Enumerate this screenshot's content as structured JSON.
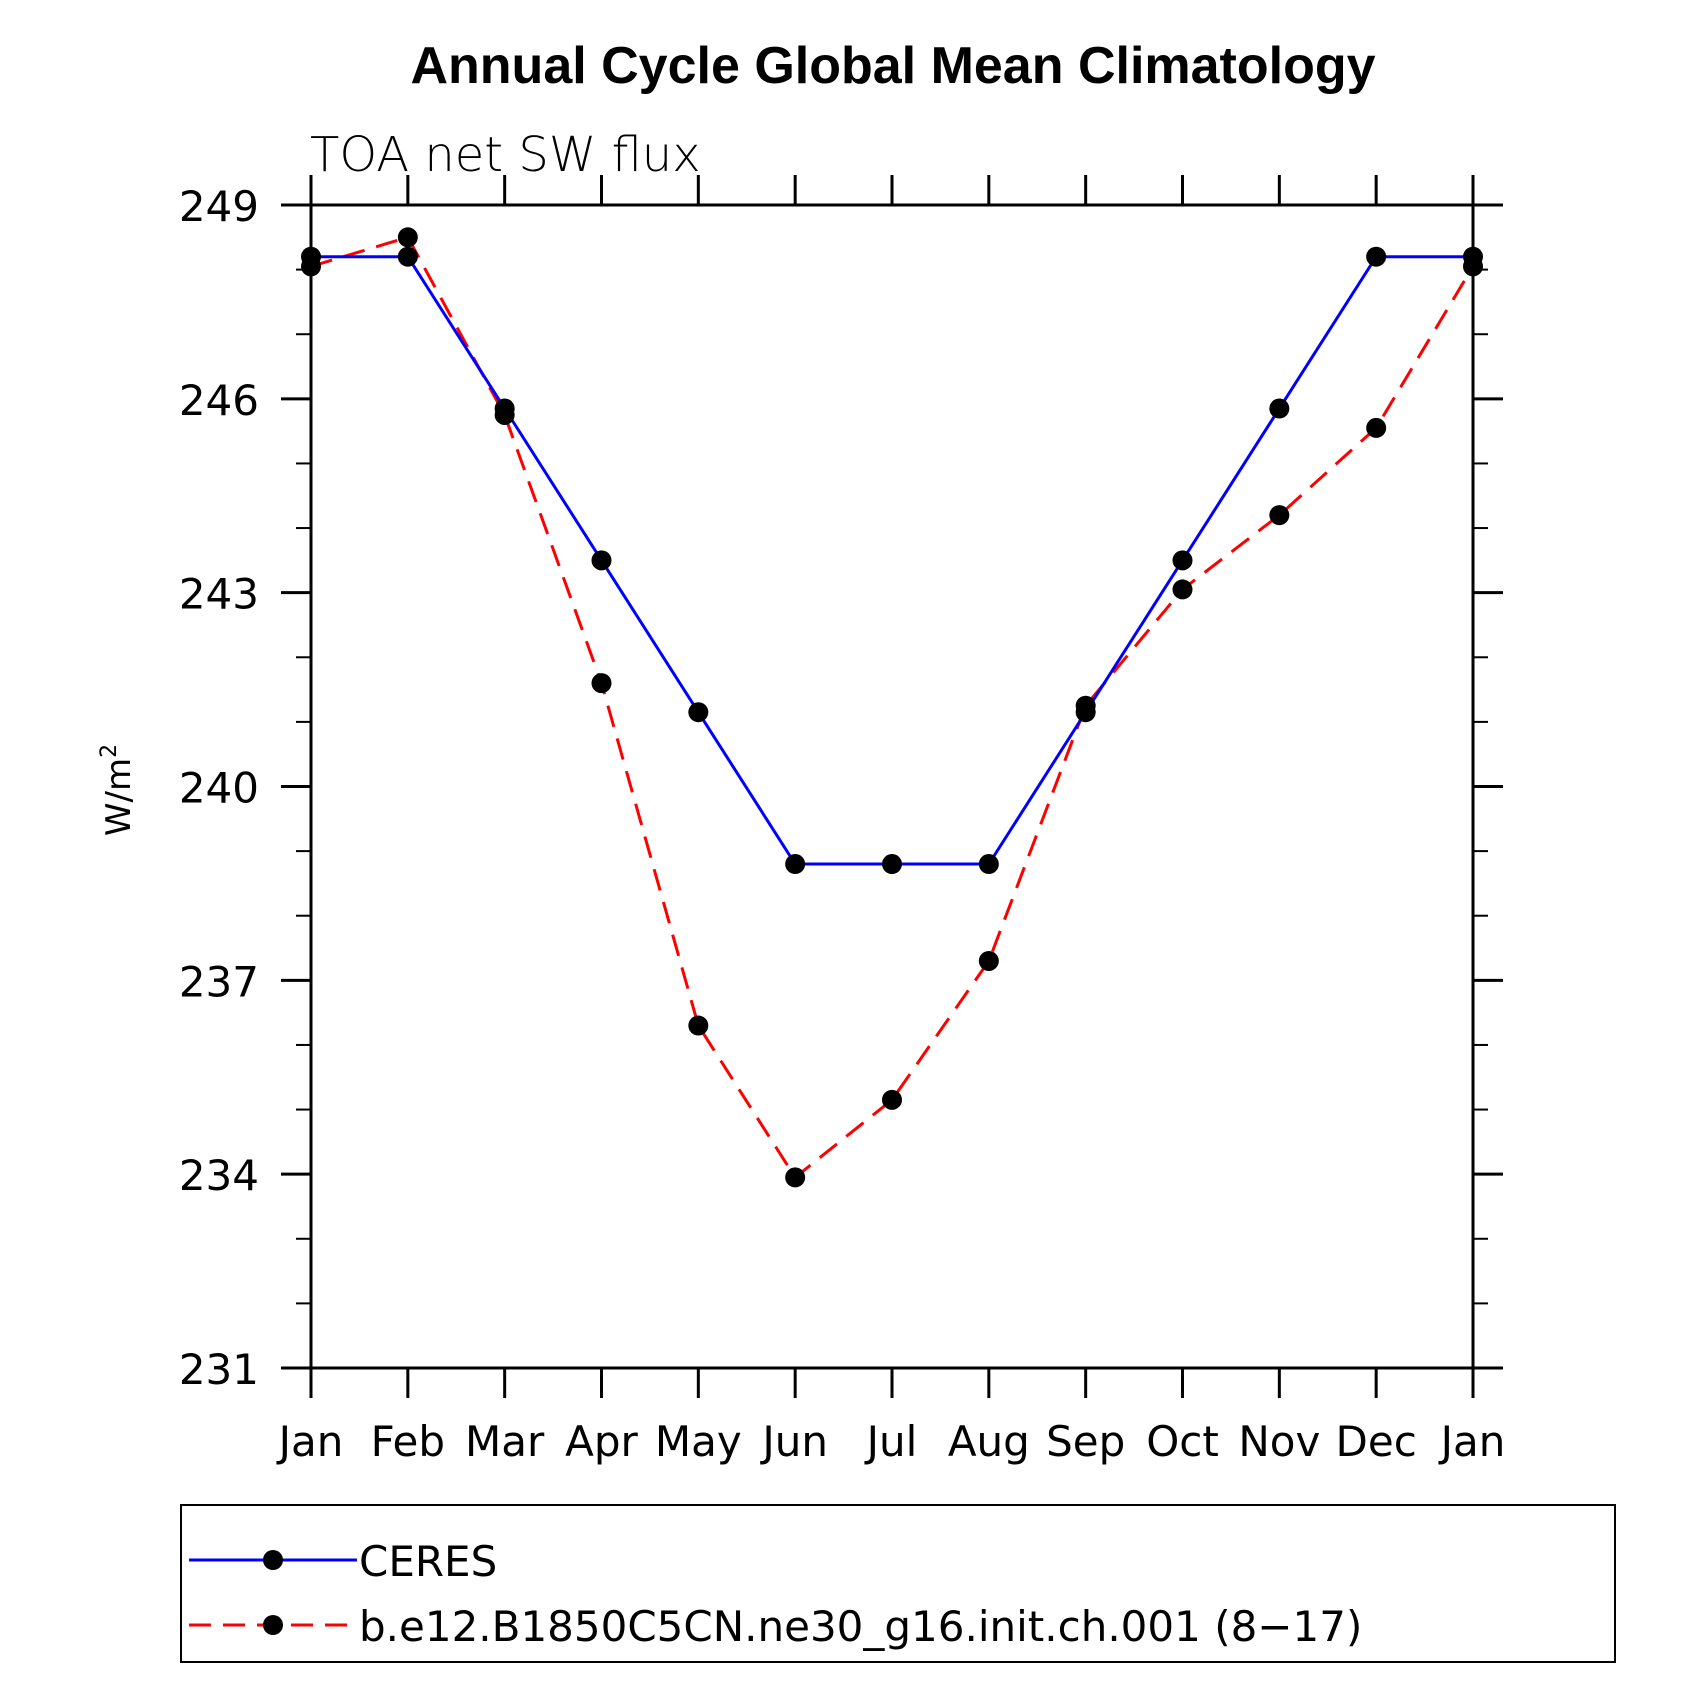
{
  "chart_data": {
    "type": "line",
    "title": "Annual Cycle Global Mean Climatology",
    "subtitle": "TOA net SW flux",
    "xlabel": "",
    "ylabel": "W/m",
    "ylabel_superscript": "2",
    "categories": [
      "Jan",
      "Feb",
      "Mar",
      "Apr",
      "May",
      "Jun",
      "Jul",
      "Aug",
      "Sep",
      "Oct",
      "Nov",
      "Dec",
      "Jan"
    ],
    "ylim": [
      231,
      249
    ],
    "yticks": [
      "249",
      "246",
      "243",
      "240",
      "237",
      "234",
      "231"
    ],
    "grid": false,
    "legend_position": "bottom",
    "series": [
      {
        "name": "CERES",
        "color": "#0000ff",
        "style": "solid",
        "marker": "filled-circle",
        "values": [
          248.2,
          248.2,
          245.85,
          243.5,
          241.15,
          238.8,
          238.8,
          238.8,
          241.15,
          243.5,
          245.85,
          248.2,
          248.2
        ]
      },
      {
        "name": "b.e12.B1850C5CN.ne30_g16.init.ch.001 (8−17)",
        "color": "#ff0000",
        "style": "dashed",
        "marker": "filled-circle",
        "values": [
          248.05,
          248.5,
          245.75,
          241.6,
          236.3,
          233.95,
          235.15,
          237.3,
          241.25,
          243.05,
          244.2,
          245.55,
          248.05
        ]
      }
    ]
  }
}
